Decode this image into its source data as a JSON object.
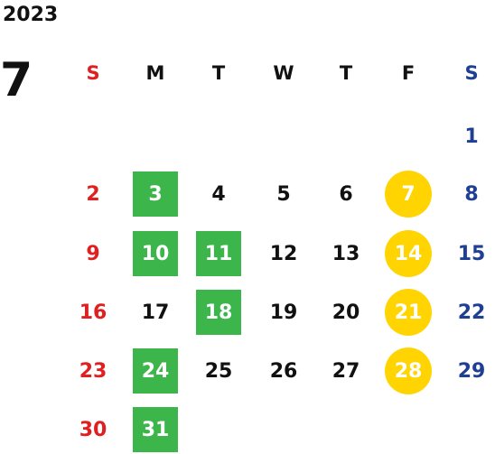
{
  "calendar": {
    "year": "2023",
    "month": "7",
    "weekdays": [
      "S",
      "M",
      "T",
      "W",
      "T",
      "F",
      "S"
    ],
    "weeks": [
      [
        "",
        "",
        "",
        "",
        "",
        "",
        "1"
      ],
      [
        "2",
        "3",
        "4",
        "5",
        "6",
        "7",
        "8"
      ],
      [
        "9",
        "10",
        "11",
        "12",
        "13",
        "14",
        "15"
      ],
      [
        "16",
        "17",
        "18",
        "19",
        "20",
        "21",
        "22"
      ],
      [
        "23",
        "24",
        "25",
        "26",
        "27",
        "28",
        "29"
      ],
      [
        "30",
        "31",
        "",
        "",
        "",
        "",
        ""
      ]
    ],
    "green_square_days": [
      "3",
      "10",
      "11",
      "18",
      "24",
      "31"
    ],
    "yellow_circle_days": [
      "7",
      "14",
      "21",
      "28"
    ],
    "colors": {
      "sunday": "#e02020",
      "saturday": "#1e3f93",
      "weekday": "#111111",
      "green_highlight": "#3cb54a",
      "yellow_highlight": "#ffd400"
    }
  }
}
